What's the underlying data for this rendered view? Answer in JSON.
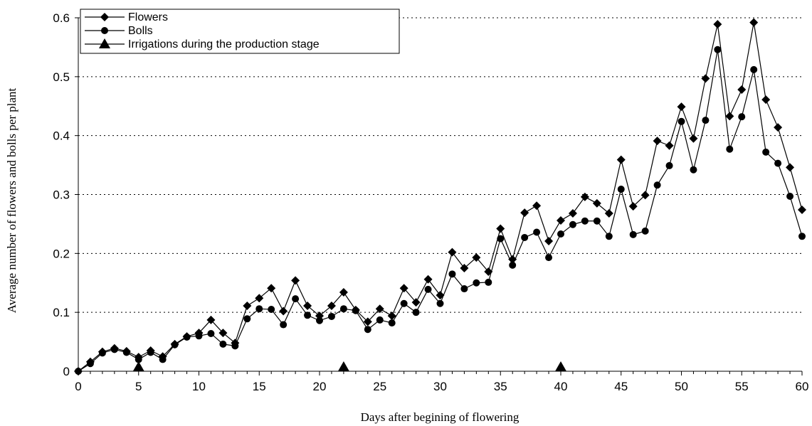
{
  "chart_data": {
    "type": "line",
    "xlabel": "Days after begining of flowering",
    "ylabel": "Average number of flowers and bolls per plant",
    "xlim": [
      0,
      60
    ],
    "ylim": [
      0,
      0.6
    ],
    "x_ticks": [
      0,
      5,
      10,
      15,
      20,
      25,
      30,
      35,
      40,
      45,
      50,
      55,
      60
    ],
    "y_ticks": [
      0,
      0.1,
      0.2,
      0.3,
      0.4,
      0.5,
      0.6
    ],
    "y_tick_labels": [
      "0",
      "0.1",
      "0.2",
      "0.3",
      "0.4",
      "0.5",
      "0.6"
    ],
    "grid": "horizontal dotted",
    "legend_position": "top-left",
    "series": [
      {
        "name": "Flowers",
        "marker": "diamond",
        "x": [
          0,
          1,
          2,
          3,
          4,
          5,
          6,
          7,
          8,
          9,
          10,
          11,
          12,
          13,
          14,
          15,
          16,
          17,
          18,
          19,
          20,
          21,
          22,
          23,
          24,
          25,
          26,
          27,
          28,
          29,
          30,
          31,
          32,
          33,
          34,
          35,
          36,
          37,
          38,
          39,
          40,
          41,
          42,
          43,
          44,
          45,
          46,
          47,
          48,
          49,
          50,
          51,
          52,
          53,
          54,
          55,
          56,
          57,
          58,
          59,
          60
        ],
        "y": [
          0,
          0.016,
          0.033,
          0.039,
          0.034,
          0.024,
          0.035,
          0.025,
          0.046,
          0.059,
          0.065,
          0.087,
          0.065,
          0.048,
          0.111,
          0.124,
          0.141,
          0.102,
          0.154,
          0.111,
          0.094,
          0.111,
          0.134,
          0.104,
          0.084,
          0.106,
          0.094,
          0.141,
          0.117,
          0.156,
          0.129,
          0.202,
          0.175,
          0.193,
          0.169,
          0.242,
          0.19,
          0.269,
          0.281,
          0.221,
          0.256,
          0.268,
          0.296,
          0.285,
          0.268,
          0.359,
          0.28,
          0.299,
          0.391,
          0.383,
          0.449,
          0.395,
          0.497,
          0.589,
          0.433,
          0.478,
          0.592,
          0.461,
          0.414,
          0.346,
          0.274
        ]
      },
      {
        "name": "Bolls",
        "marker": "circle",
        "x": [
          0,
          1,
          2,
          3,
          4,
          5,
          6,
          7,
          8,
          9,
          10,
          11,
          12,
          13,
          14,
          15,
          16,
          17,
          18,
          19,
          20,
          21,
          22,
          23,
          24,
          25,
          26,
          27,
          28,
          29,
          30,
          31,
          32,
          33,
          34,
          35,
          36,
          37,
          38,
          39,
          40,
          41,
          42,
          43,
          44,
          45,
          46,
          47,
          48,
          49,
          50,
          51,
          52,
          53,
          54,
          55,
          56,
          57,
          58,
          59,
          60
        ],
        "y": [
          0,
          0.013,
          0.031,
          0.037,
          0.032,
          0.02,
          0.032,
          0.02,
          0.045,
          0.058,
          0.06,
          0.064,
          0.046,
          0.043,
          0.089,
          0.106,
          0.105,
          0.079,
          0.123,
          0.095,
          0.086,
          0.093,
          0.106,
          0.103,
          0.071,
          0.087,
          0.082,
          0.115,
          0.1,
          0.139,
          0.115,
          0.165,
          0.14,
          0.15,
          0.151,
          0.225,
          0.18,
          0.227,
          0.236,
          0.193,
          0.233,
          0.249,
          0.255,
          0.255,
          0.229,
          0.309,
          0.232,
          0.238,
          0.316,
          0.349,
          0.424,
          0.342,
          0.426,
          0.546,
          0.377,
          0.432,
          0.512,
          0.372,
          0.353,
          0.297,
          0.229
        ]
      },
      {
        "name": "Irrigations during the production stage",
        "marker": "triangle",
        "x": [
          5,
          22,
          40
        ],
        "y": [
          0,
          0,
          0
        ]
      }
    ]
  }
}
